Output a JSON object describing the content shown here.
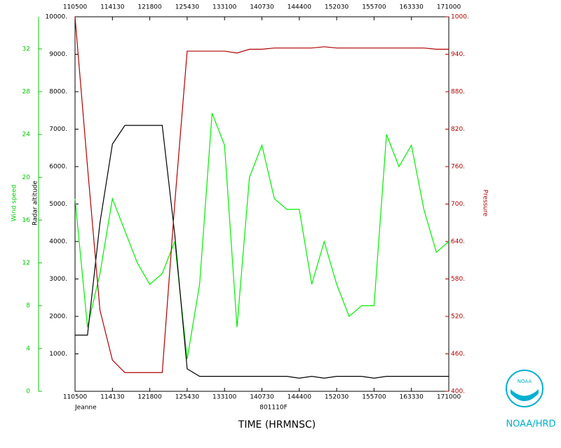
{
  "chart_data": {
    "type": "line",
    "label_left": "Jeanne",
    "label_center": "801110F",
    "xlabel": "TIME (HRMNSC)",
    "credit": "NOAA/HRD",
    "logo_text": "NOAA",
    "xlim": [
      39900,
      61800
    ],
    "xticks": [
      {
        "value": 39900,
        "label": "110500"
      },
      {
        "value": 42090,
        "label": "114130"
      },
      {
        "value": 44280,
        "label": "121800"
      },
      {
        "value": 46470,
        "label": "125430"
      },
      {
        "value": 48660,
        "label": "133100"
      },
      {
        "value": 50850,
        "label": "140730"
      },
      {
        "value": 53040,
        "label": "144400"
      },
      {
        "value": 55230,
        "label": "152030"
      },
      {
        "value": 57420,
        "label": "155700"
      },
      {
        "value": 59610,
        "label": "163330"
      },
      {
        "value": 61800,
        "label": "171000"
      }
    ],
    "x": [
      39900,
      40630,
      41360,
      42090,
      42820,
      43550,
      44280,
      45010,
      45740,
      46470,
      47200,
      47930,
      48660,
      49390,
      50120,
      50850,
      51580,
      52310,
      53040,
      53770,
      54500,
      55230,
      55960,
      56690,
      57420,
      58150,
      58880,
      59610,
      60340,
      61070,
      61800
    ],
    "axes": {
      "wind": {
        "label": "Wind speed",
        "color": "#00cc00",
        "lim": [
          0,
          35
        ],
        "ticks": [
          0,
          4,
          8,
          12,
          16,
          20,
          24,
          28,
          32
        ]
      },
      "alt": {
        "label": "Radar altitude",
        "color": "#000000",
        "lim": [
          0,
          10000
        ],
        "ticks": [
          {
            "value": 1000,
            "label": "1000."
          },
          {
            "value": 2000,
            "label": "2000."
          },
          {
            "value": 3000,
            "label": "3000."
          },
          {
            "value": 4000,
            "label": "4000."
          },
          {
            "value": 5000,
            "label": "5000."
          },
          {
            "value": 6000,
            "label": "6000."
          },
          {
            "value": 7000,
            "label": "7000."
          },
          {
            "value": 8000,
            "label": "8000."
          },
          {
            "value": 9000,
            "label": "9000."
          },
          {
            "value": 10000,
            "label": "10000."
          }
        ]
      },
      "pres": {
        "label": "Pressure",
        "color": "#b00000",
        "lim": [
          400,
          1000
        ],
        "ticks": [
          {
            "value": 400,
            "label": "400."
          },
          {
            "value": 460,
            "label": "460."
          },
          {
            "value": 520,
            "label": "520."
          },
          {
            "value": 580,
            "label": "580."
          },
          {
            "value": 640,
            "label": "640."
          },
          {
            "value": 700,
            "label": "700."
          },
          {
            "value": 760,
            "label": "760."
          },
          {
            "value": 820,
            "label": "820."
          },
          {
            "value": 880,
            "label": "880."
          },
          {
            "value": 940,
            "label": "940."
          },
          {
            "value": 1000,
            "label": "1000."
          }
        ]
      }
    },
    "series": [
      {
        "name": "Wind speed",
        "axis": "wind",
        "color": "#00ee00",
        "values": [
          18,
          6,
          11,
          18,
          15,
          12,
          10,
          11,
          14,
          3,
          10,
          26,
          23,
          6,
          20,
          23,
          18,
          17,
          17,
          10,
          14,
          10,
          7,
          8,
          8,
          24,
          21,
          23,
          17,
          13,
          14
        ]
      },
      {
        "name": "Radar altitude",
        "axis": "alt",
        "color": "#000000",
        "values": [
          1500,
          1500,
          4500,
          6600,
          7100,
          7100,
          7100,
          7100,
          4200,
          600,
          400,
          400,
          400,
          400,
          400,
          400,
          400,
          400,
          350,
          400,
          350,
          400,
          400,
          400,
          350,
          400,
          400,
          400,
          400,
          400,
          400
        ]
      },
      {
        "name": "Pressure",
        "axis": "pres",
        "color": "#b00000",
        "values": [
          1000,
          760,
          530,
          450,
          430,
          430,
          430,
          430,
          700,
          945,
          945,
          945,
          945,
          942,
          948,
          948,
          950,
          950,
          950,
          950,
          952,
          950,
          950,
          950,
          950,
          950,
          950,
          950,
          950,
          948,
          948
        ]
      }
    ]
  }
}
